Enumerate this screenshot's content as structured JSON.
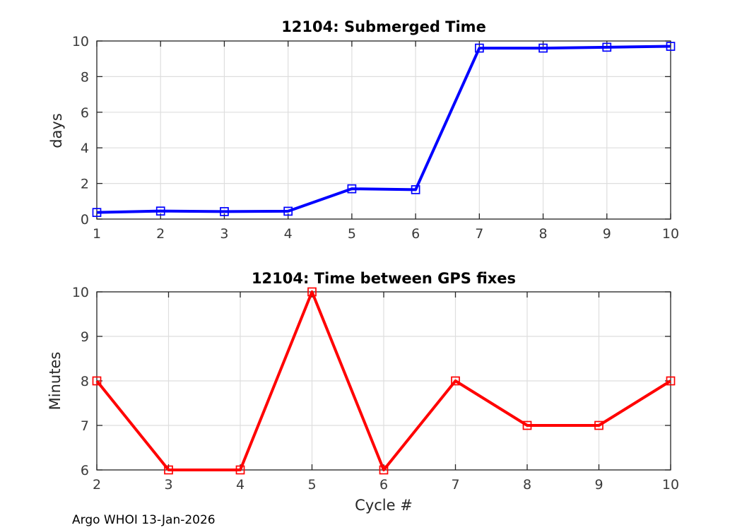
{
  "figure": {
    "watermark": "Argo WHOI 13-Jan-2026",
    "background": "#ffffff"
  },
  "style": {
    "axis_color": "#262626",
    "grid_color": "#dedede",
    "tick_label_color": "#3a3a3a",
    "blue": "#0000ff",
    "red": "#ff0000"
  },
  "chart_data": [
    {
      "type": "line",
      "title": "12104: Submerged Time",
      "xlabel": "",
      "ylabel": "days",
      "x": [
        1,
        2,
        3,
        4,
        5,
        6,
        7,
        8,
        9,
        10
      ],
      "series": [
        {
          "name": "submerged-time-days",
          "color": "#0000ff",
          "marker": "open-square",
          "values": [
            0.37,
            0.45,
            0.42,
            0.44,
            1.7,
            1.65,
            9.6,
            9.6,
            9.65,
            9.7
          ]
        }
      ],
      "xlim": [
        1,
        10
      ],
      "ylim": [
        0,
        10
      ],
      "xticks": [
        1,
        2,
        3,
        4,
        5,
        6,
        7,
        8,
        9,
        10
      ],
      "yticks": [
        0,
        2,
        4,
        6,
        8,
        10
      ],
      "grid": true,
      "legend": "none"
    },
    {
      "type": "line",
      "title": "12104: Time between GPS fixes",
      "xlabel": "Cycle #",
      "ylabel": "Minutes",
      "x": [
        2,
        3,
        4,
        5,
        6,
        7,
        8,
        9,
        10
      ],
      "series": [
        {
          "name": "gps-fix-interval-minutes",
          "color": "#ff0000",
          "marker": "open-square",
          "values": [
            8,
            6,
            6,
            10,
            6,
            8,
            7,
            7,
            8
          ]
        }
      ],
      "xlim": [
        2,
        10
      ],
      "ylim": [
        6,
        10
      ],
      "xticks": [
        2,
        3,
        4,
        5,
        6,
        7,
        8,
        9,
        10
      ],
      "yticks": [
        6,
        7,
        8,
        9,
        10
      ],
      "grid": true,
      "legend": "none"
    }
  ]
}
